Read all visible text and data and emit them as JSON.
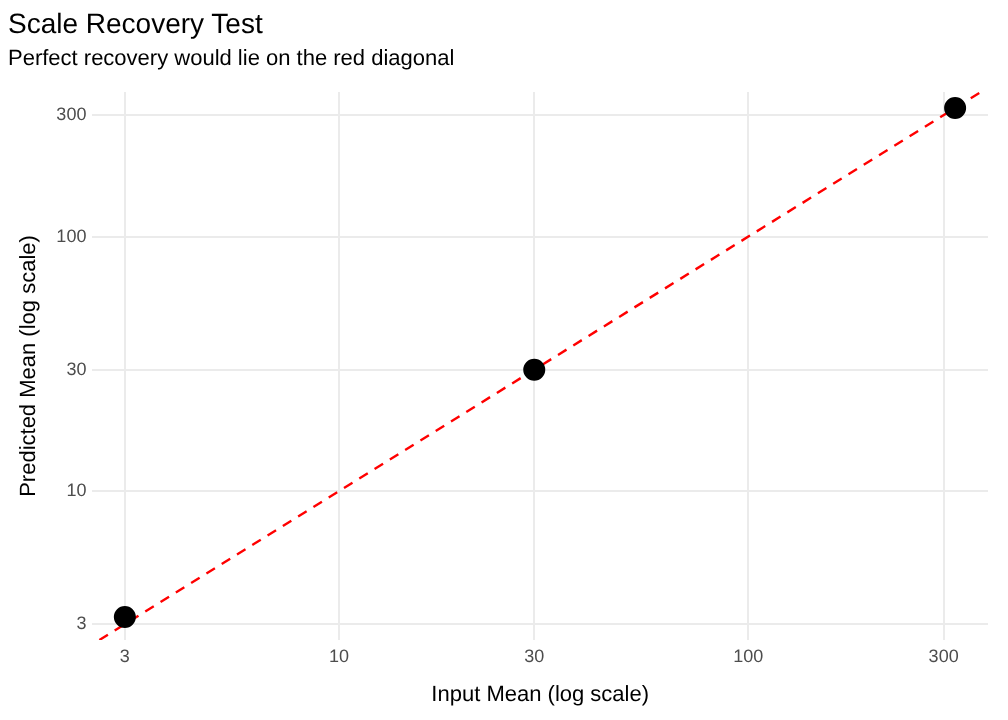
{
  "chart_data": {
    "type": "scatter",
    "title": "Scale Recovery Test",
    "subtitle": "Perfect recovery would lie on the red diagonal",
    "xlabel": "Input Mean (log scale)",
    "ylabel": "Predicted Mean (log scale)",
    "log": "xy",
    "xlim": [
      2.5,
      385
    ],
    "ylim": [
      2.6,
      370
    ],
    "xticks": [
      3,
      10,
      30,
      100,
      300
    ],
    "yticks": [
      3,
      10,
      30,
      100,
      300
    ],
    "grid": true,
    "legend": false,
    "series": [
      {
        "type": "line",
        "x": [
          2.6,
          370
        ],
        "values": [
          2.6,
          370
        ],
        "color": "#ff0000",
        "line_style": "dashed",
        "marker": "none"
      },
      {
        "type": "scatter",
        "x": [
          3,
          30,
          320
        ],
        "values": [
          3.2,
          30,
          320
        ],
        "color": "#000000",
        "marker": "circle"
      }
    ]
  }
}
